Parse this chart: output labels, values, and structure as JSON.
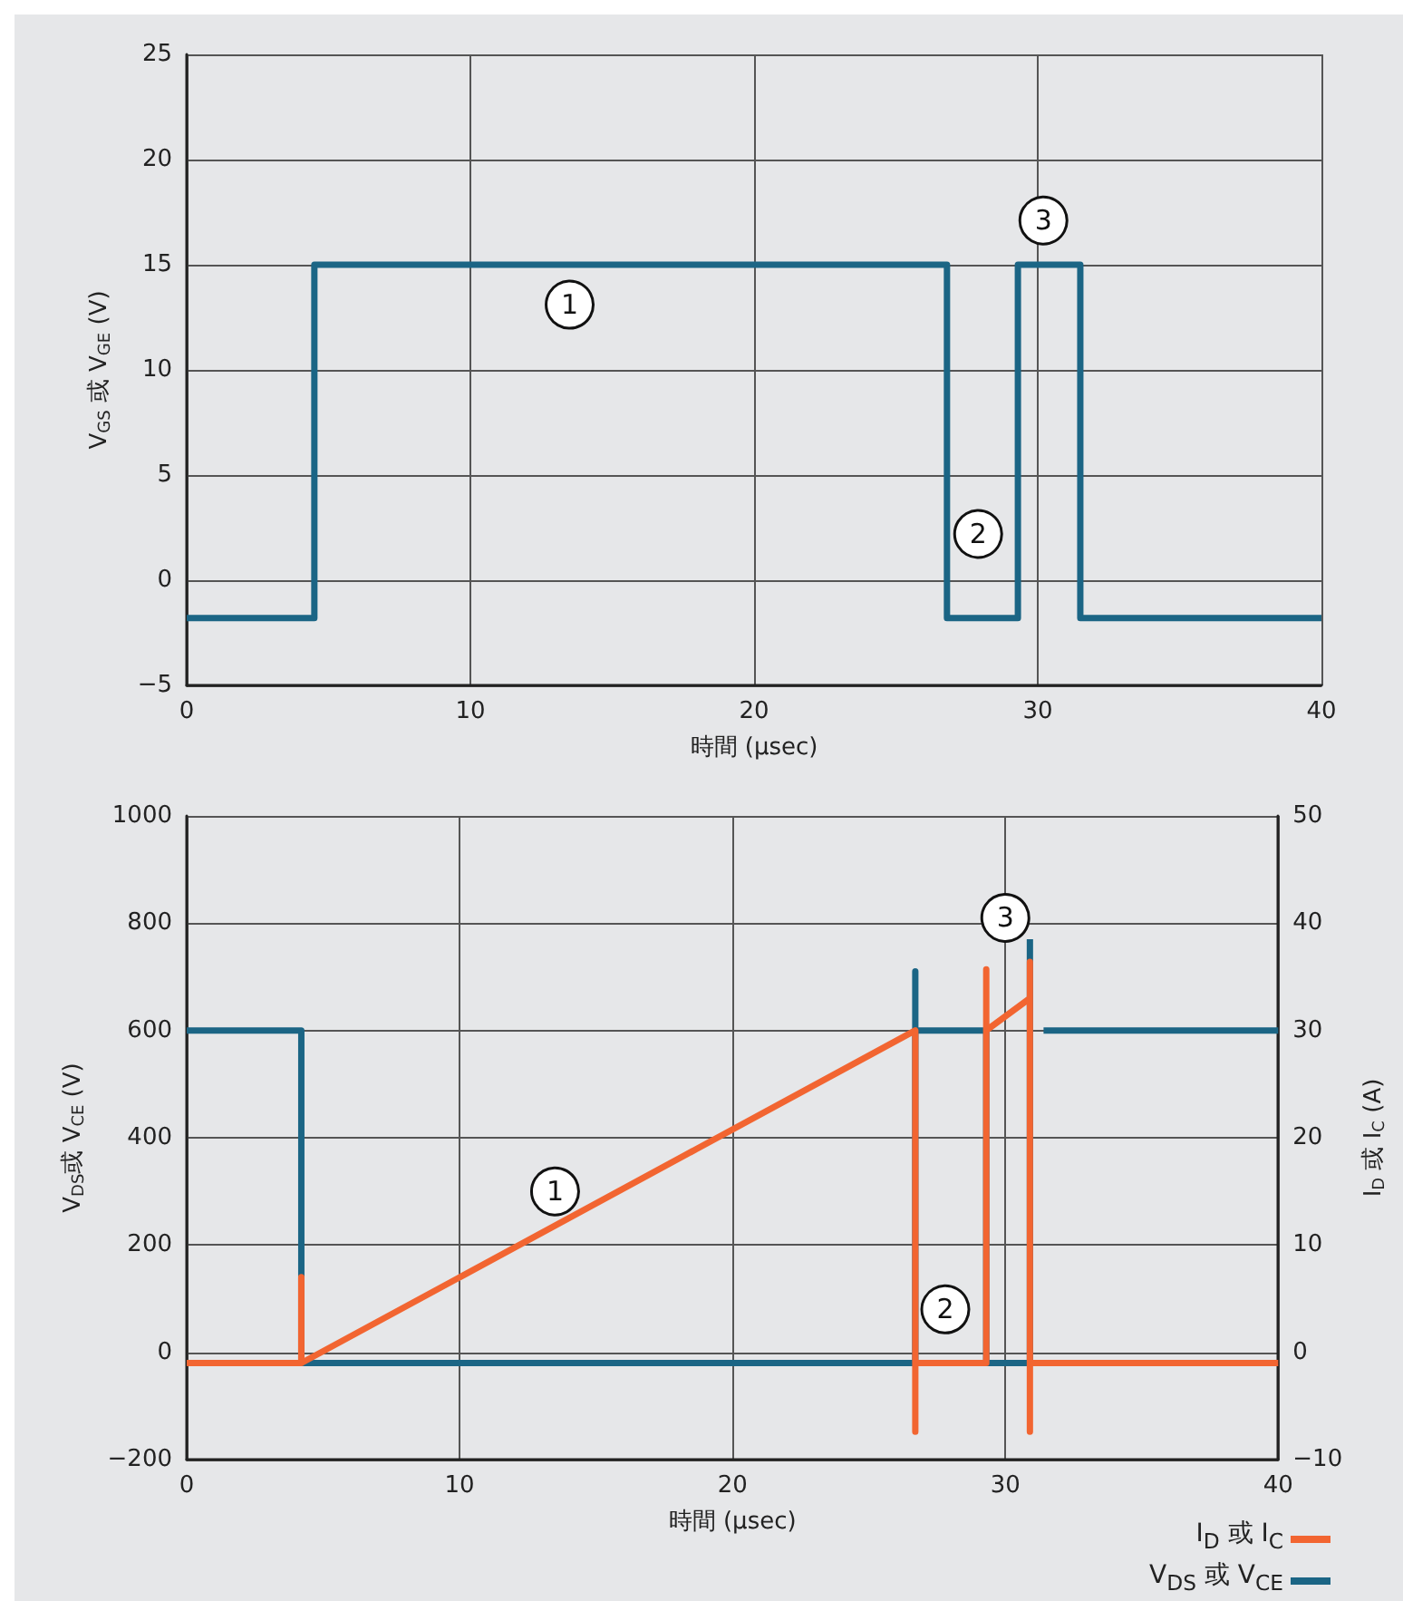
{
  "chart_data": [
    {
      "type": "line",
      "xlabel": "時間 (μsec)",
      "ylabel": "V$_{GS}$ 或 V$_{GE}$ (V)",
      "xlim": [
        0,
        40
      ],
      "xticks": [
        0,
        10,
        20,
        30,
        40
      ],
      "ylim": [
        -5,
        25
      ],
      "yticks": [
        {
          "value": -5,
          "label": "−5"
        },
        0,
        5,
        10,
        15,
        20,
        25
      ],
      "grid": true,
      "marker": "none",
      "legend": false,
      "series": [
        {
          "color": "#1b6585",
          "x": [
            0,
            4.5,
            4.5,
            26.8,
            26.8,
            29.3,
            29.3,
            31.5,
            31.5,
            40
          ],
          "values": [
            -1.8,
            -1.8,
            15,
            15,
            -1.8,
            -1.8,
            15,
            15,
            -1.8,
            -1.8
          ]
        }
      ],
      "annotations": [
        {
          "text": "1",
          "x": 13.5,
          "y": 13.1
        },
        {
          "text": "2",
          "x": 27.9,
          "y": 2.2
        },
        {
          "text": "3",
          "x": 30.2,
          "y": 17.1
        }
      ]
    },
    {
      "type": "line",
      "xlabel": "時間 (μsec)",
      "ylabel": "V$_{DS}$或 V$_{CE}$ (V)",
      "y2label": "I$_{D}$ 或 I$_{C}$ (A)",
      "xlim": [
        0,
        40
      ],
      "xticks": [
        0,
        10,
        20,
        30,
        40
      ],
      "ylim": [
        -200,
        1000
      ],
      "yticks": [
        {
          "value": -200,
          "label": "−200"
        },
        0,
        200,
        400,
        600,
        800,
        1000
      ],
      "y2lim": [
        -10,
        50
      ],
      "y2ticks": [
        {
          "value": -10,
          "label": "−10"
        },
        0,
        10,
        20,
        30,
        40,
        50
      ],
      "grid": true,
      "marker": "none",
      "legend": "bottom right",
      "series": [
        {
          "name": "I$_{D}$ 或 I$_{C}$",
          "color": "#f26531",
          "axis": "y2",
          "x": [
            0,
            4.2,
            4.2,
            4.2,
            26.7,
            26.7,
            26.7,
            29.3,
            29.3,
            29.3,
            30.9,
            30.9,
            30.9,
            30.9,
            40
          ],
          "values": [
            -1,
            -1,
            7,
            -1,
            30,
            -7.4,
            -1,
            -1,
            35.7,
            30,
            33,
            36.4,
            -7.4,
            -1,
            -1
          ]
        },
        {
          "name": "V$_{DS}$ 或 V$_{CE}$",
          "color": "#1b6585",
          "axis": "y",
          "x": [
            0,
            4.2,
            4.2,
            26.7,
            26.7,
            26.7,
            29.3,
            29.3,
            30.9,
            30.9,
            31.1,
            31.4,
            40
          ],
          "values": [
            600,
            600,
            -20,
            -20,
            710,
            600,
            600,
            -20,
            -20,
            770,
            null,
            600,
            600
          ]
        }
      ],
      "annotations": [
        {
          "text": "1",
          "x": 13.5,
          "y": 300
        },
        {
          "text": "2",
          "x": 27.8,
          "y": 80
        },
        {
          "text": "3",
          "x": 30,
          "y": 810
        }
      ]
    }
  ]
}
